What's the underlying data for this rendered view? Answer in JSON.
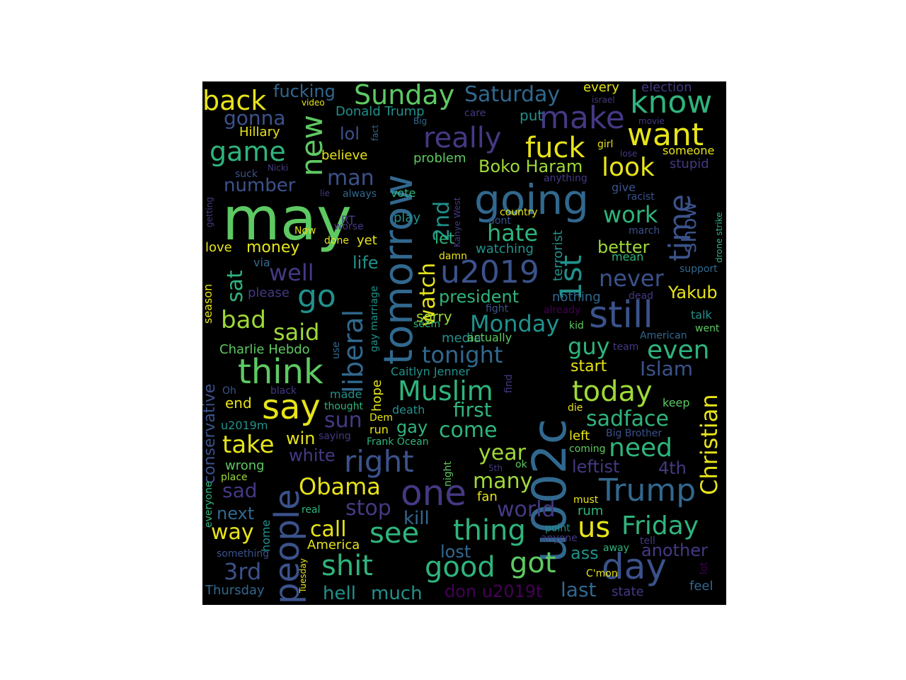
{
  "palette": {
    "background": "#000000",
    "yellow": "#e7e419",
    "lime": "#9fd938",
    "green": "#5ec962",
    "teal": "#21918c",
    "aqua": "#2fb47c",
    "blue": "#3b528b",
    "slate": "#31688e",
    "indigo": "#443983",
    "purple": "#440154"
  },
  "words": [
    {
      "text": "may",
      "color": "green"
    },
    {
      "text": "tomorrow",
      "color": "slate"
    },
    {
      "text": "u002c",
      "color": "slate"
    },
    {
      "text": "people",
      "color": "blue"
    },
    {
      "text": "going",
      "color": "slate"
    },
    {
      "text": "u2019",
      "color": "blue"
    },
    {
      "text": "one",
      "color": "indigo"
    },
    {
      "text": "still",
      "color": "blue"
    },
    {
      "text": "think",
      "color": "green"
    },
    {
      "text": "say",
      "color": "yellow"
    },
    {
      "text": "day",
      "color": "blue"
    },
    {
      "text": "Trump",
      "color": "slate"
    },
    {
      "text": "make",
      "color": "indigo"
    },
    {
      "text": "new",
      "color": "green"
    },
    {
      "text": "know",
      "color": "aqua"
    },
    {
      "text": "want",
      "color": "yellow"
    },
    {
      "text": "time",
      "color": "blue"
    },
    {
      "text": "1st",
      "color": "teal"
    },
    {
      "text": "right",
      "color": "blue"
    },
    {
      "text": "Sunday",
      "color": "green"
    },
    {
      "text": "fuck",
      "color": "yellow"
    },
    {
      "text": "really",
      "color": "indigo"
    },
    {
      "text": "game",
      "color": "aqua"
    },
    {
      "text": "back",
      "color": "yellow"
    },
    {
      "text": "Muslim",
      "color": "aqua"
    },
    {
      "text": "liberal",
      "color": "slate"
    },
    {
      "text": "go",
      "color": "teal"
    },
    {
      "text": "today",
      "color": "lime"
    },
    {
      "text": "see",
      "color": "aqua"
    },
    {
      "text": "shit",
      "color": "aqua"
    },
    {
      "text": "thing",
      "color": "aqua"
    },
    {
      "text": "good",
      "color": "aqua"
    },
    {
      "text": "got",
      "color": "green"
    },
    {
      "text": "us",
      "color": "yellow"
    },
    {
      "text": "Friday",
      "color": "aqua"
    },
    {
      "text": "Christian",
      "color": "yellow"
    },
    {
      "text": "watch",
      "color": "yellow"
    },
    {
      "text": "2nd",
      "color": "teal"
    },
    {
      "text": "Saturday",
      "color": "slate"
    },
    {
      "text": "look",
      "color": "yellow"
    },
    {
      "text": "well",
      "color": "indigo"
    },
    {
      "text": "said",
      "color": "lime"
    },
    {
      "text": "bad",
      "color": "lime"
    },
    {
      "text": "take",
      "color": "yellow"
    },
    {
      "text": "Obama",
      "color": "yellow"
    },
    {
      "text": "need",
      "color": "aqua"
    },
    {
      "text": "even",
      "color": "aqua"
    },
    {
      "text": "never",
      "color": "blue"
    },
    {
      "text": "work",
      "color": "aqua"
    },
    {
      "text": "hate",
      "color": "aqua"
    },
    {
      "text": "show",
      "color": "blue"
    },
    {
      "text": "sat",
      "color": "aqua"
    },
    {
      "text": "3rd",
      "color": "blue"
    },
    {
      "text": "tonight",
      "color": "slate"
    },
    {
      "text": "Monday",
      "color": "teal"
    },
    {
      "text": "world",
      "color": "indigo"
    },
    {
      "text": "many",
      "color": "lime"
    },
    {
      "text": "year",
      "color": "lime"
    },
    {
      "text": "come",
      "color": "aqua"
    },
    {
      "text": "first",
      "color": "aqua"
    },
    {
      "text": "sadface",
      "color": "aqua"
    },
    {
      "text": "guy",
      "color": "aqua"
    },
    {
      "text": "Islam",
      "color": "blue"
    },
    {
      "text": "man",
      "color": "blue"
    },
    {
      "text": "number",
      "color": "blue"
    },
    {
      "text": "gonna",
      "color": "blue"
    },
    {
      "text": "fucking",
      "color": "slate"
    },
    {
      "text": "call",
      "color": "yellow"
    },
    {
      "text": "stop",
      "color": "indigo"
    },
    {
      "text": "way",
      "color": "yellow"
    },
    {
      "text": "next",
      "color": "slate"
    },
    {
      "text": "sad",
      "color": "indigo"
    },
    {
      "text": "sun",
      "color": "indigo"
    },
    {
      "text": "president",
      "color": "aqua"
    },
    {
      "text": "Boko Haram",
      "color": "lime"
    },
    {
      "text": "better",
      "color": "lime"
    },
    {
      "text": "Yakub",
      "color": "yellow"
    },
    {
      "text": "leftist",
      "color": "indigo"
    },
    {
      "text": "4th",
      "color": "indigo"
    },
    {
      "text": "hell",
      "color": "teal"
    },
    {
      "text": "much",
      "color": "teal"
    },
    {
      "text": "don u2019t",
      "color": "purple"
    },
    {
      "text": "last",
      "color": "slate"
    },
    {
      "text": "lost",
      "color": "slate"
    },
    {
      "text": "kill",
      "color": "slate"
    },
    {
      "text": "another",
      "color": "indigo"
    },
    {
      "text": "ass",
      "color": "teal"
    },
    {
      "text": "life",
      "color": "teal"
    },
    {
      "text": "lol",
      "color": "blue"
    },
    {
      "text": "money",
      "color": "yellow"
    },
    {
      "text": "Charlie Hebdo",
      "color": "green"
    },
    {
      "text": "conservative",
      "color": "blue"
    },
    {
      "text": "win",
      "color": "yellow"
    },
    {
      "text": "white",
      "color": "indigo"
    },
    {
      "text": "gay",
      "color": "aqua"
    },
    {
      "text": "start",
      "color": "yellow"
    },
    {
      "text": "nothing",
      "color": "slate"
    },
    {
      "text": "watching",
      "color": "teal"
    },
    {
      "text": "Hillary",
      "color": "yellow"
    },
    {
      "text": "Donald Trump",
      "color": "teal"
    },
    {
      "text": "put",
      "color": "teal"
    },
    {
      "text": "every",
      "color": "yellow"
    },
    {
      "text": "election",
      "color": "indigo"
    },
    {
      "text": "believe",
      "color": "yellow"
    },
    {
      "text": "problem",
      "color": "green"
    },
    {
      "text": "let",
      "color": "aqua"
    },
    {
      "text": "sorry",
      "color": "lime"
    },
    {
      "text": "end",
      "color": "yellow"
    },
    {
      "text": "wrong",
      "color": "green"
    },
    {
      "text": "u2019m",
      "color": "teal"
    },
    {
      "text": "love",
      "color": "yellow"
    },
    {
      "text": "via",
      "color": "slate"
    },
    {
      "text": "please",
      "color": "indigo"
    },
    {
      "text": "season",
      "color": "yellow"
    },
    {
      "text": "Thursday",
      "color": "slate"
    },
    {
      "text": "America",
      "color": "yellow"
    },
    {
      "text": "fan",
      "color": "yellow"
    },
    {
      "text": "rum",
      "color": "aqua"
    },
    {
      "text": "media",
      "color": "teal"
    },
    {
      "text": "actually",
      "color": "green"
    },
    {
      "text": "terrorist",
      "color": "teal"
    },
    {
      "text": "mean",
      "color": "aqua"
    },
    {
      "text": "support",
      "color": "slate"
    },
    {
      "text": "talk",
      "color": "teal"
    },
    {
      "text": "went",
      "color": "green"
    },
    {
      "text": "American",
      "color": "slate"
    },
    {
      "text": "keep",
      "color": "green"
    },
    {
      "text": "stupid",
      "color": "indigo"
    },
    {
      "text": "someone",
      "color": "yellow"
    },
    {
      "text": "give",
      "color": "blue"
    },
    {
      "text": "racist",
      "color": "blue"
    },
    {
      "text": "march",
      "color": "blue"
    },
    {
      "text": "dead",
      "color": "indigo"
    },
    {
      "text": "kid",
      "color": "green"
    },
    {
      "text": "fight",
      "color": "blue"
    },
    {
      "text": "already",
      "color": "purple"
    },
    {
      "text": "team",
      "color": "indigo"
    },
    {
      "text": "left",
      "color": "yellow"
    },
    {
      "text": "coming",
      "color": "green"
    },
    {
      "text": "Big Brother",
      "color": "blue"
    },
    {
      "text": "must",
      "color": "yellow"
    },
    {
      "text": "point",
      "color": "teal"
    },
    {
      "text": "anyone",
      "color": "indigo"
    },
    {
      "text": "away",
      "color": "aqua"
    },
    {
      "text": "tell",
      "color": "indigo"
    },
    {
      "text": "C'mon",
      "color": "yellow"
    },
    {
      "text": "state",
      "color": "indigo"
    },
    {
      "text": "feel",
      "color": "slate"
    },
    {
      "text": "lot",
      "color": "purple"
    },
    {
      "text": "die",
      "color": "yellow"
    },
    {
      "text": "find",
      "color": "indigo"
    },
    {
      "text": "Caitlyn Jenner",
      "color": "teal"
    },
    {
      "text": "hope",
      "color": "yellow"
    },
    {
      "text": "death",
      "color": "teal"
    },
    {
      "text": "run",
      "color": "yellow"
    },
    {
      "text": "Dem",
      "color": "yellow"
    },
    {
      "text": "Frank Ocean",
      "color": "aqua"
    },
    {
      "text": "saying",
      "color": "indigo"
    },
    {
      "text": "made",
      "color": "teal"
    },
    {
      "text": "thought",
      "color": "aqua"
    },
    {
      "text": "black",
      "color": "indigo"
    },
    {
      "text": "Oh",
      "color": "blue"
    },
    {
      "text": "place",
      "color": "lime"
    },
    {
      "text": "everyone",
      "color": "aqua"
    },
    {
      "text": "real",
      "color": "aqua"
    },
    {
      "text": "home",
      "color": "teal"
    },
    {
      "text": "something",
      "color": "blue"
    },
    {
      "text": "Tuesday",
      "color": "yellow"
    },
    {
      "text": "night",
      "color": "green"
    },
    {
      "text": "5th",
      "color": "indigo"
    },
    {
      "text": "ok",
      "color": "green"
    },
    {
      "text": "seem",
      "color": "aqua"
    },
    {
      "text": "use",
      "color": "slate"
    },
    {
      "text": "gay marriage",
      "color": "teal"
    },
    {
      "text": "damn",
      "color": "yellow"
    },
    {
      "text": "yet",
      "color": "yellow"
    },
    {
      "text": "done",
      "color": "yellow"
    },
    {
      "text": "Now",
      "color": "yellow"
    },
    {
      "text": "worse",
      "color": "indigo"
    },
    {
      "text": "RT",
      "color": "indigo"
    },
    {
      "text": "play",
      "color": "teal"
    },
    {
      "text": "dont",
      "color": "blue"
    },
    {
      "text": "country",
      "color": "yellow"
    },
    {
      "text": "vote",
      "color": "aqua"
    },
    {
      "text": "always",
      "color": "slate"
    },
    {
      "text": "lie",
      "color": "indigo"
    },
    {
      "text": "getting",
      "color": "indigo"
    },
    {
      "text": "suck",
      "color": "blue"
    },
    {
      "text": "Nicki",
      "color": "indigo"
    },
    {
      "text": "fact",
      "color": "slate"
    },
    {
      "text": "Big",
      "color": "slate"
    },
    {
      "text": "video",
      "color": "yellow"
    },
    {
      "text": "Kanye West",
      "color": "indigo"
    },
    {
      "text": "anything",
      "color": "indigo"
    },
    {
      "text": "girl",
      "color": "yellow"
    },
    {
      "text": "lose",
      "color": "indigo"
    },
    {
      "text": "israel",
      "color": "indigo"
    },
    {
      "text": "movie",
      "color": "indigo"
    },
    {
      "text": "care",
      "color": "indigo"
    },
    {
      "text": "drone strike",
      "color": "aqua"
    }
  ]
}
